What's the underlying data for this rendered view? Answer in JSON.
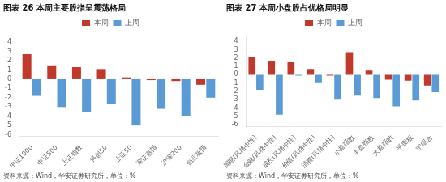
{
  "chart_data": [
    {
      "type": "bar",
      "title": "图表 26 本周主要股指呈震荡格局",
      "categories": [
        "中证1000",
        "中证500",
        "上证指数",
        "科创50",
        "上证50",
        "深证基指",
        "沪深200",
        "创业板指"
      ],
      "series": [
        {
          "name": "本周",
          "color": "#C0392B",
          "values": [
            2.7,
            1.5,
            1.3,
            1.1,
            0.2,
            -0.1,
            -0.2,
            -0.6
          ]
        },
        {
          "name": "上周",
          "color": "#5B9BD5",
          "values": [
            -1.8,
            -3.0,
            -3.5,
            -2.7,
            -5.0,
            -3.2,
            -4.0,
            -2.0
          ]
        }
      ],
      "ylim": [
        -6.2,
        4.8
      ],
      "yticks": [
        -6,
        -5,
        -4,
        -3,
        -2,
        -1,
        0,
        1,
        2,
        3,
        4
      ],
      "grid": false,
      "legend": "top",
      "annotations": [
        "资料来源：Wind，华安证券研究所，单位：%"
      ]
    },
    {
      "type": "bar",
      "title": "图表 27 本周小盘股占优格局明显",
      "categories": [
        "周期(风格中性)",
        "金融(风格中性)",
        "成长(风格中性)",
        "价值(风格中性)",
        "消费(风格中性)",
        "小盘指数",
        "中盘指数",
        "大盘指数",
        "平衡板",
        "宁组合"
      ],
      "series": [
        {
          "name": "本周",
          "color": "#C0392B",
          "values": [
            2.1,
            1.7,
            1.5,
            0.7,
            -0.1,
            2.7,
            0.5,
            -0.6,
            -0.7,
            -1.3
          ]
        },
        {
          "name": "上周",
          "color": "#5B9BD5",
          "values": [
            -1.8,
            -4.8,
            -0.1,
            -0.9,
            -3.0,
            -2.5,
            -2.8,
            -3.8,
            -3.1,
            -2.1
          ]
        }
      ],
      "ylim": [
        -6.2,
        4.8
      ],
      "yticks": [
        -6,
        -5,
        -4,
        -3,
        -2,
        -1,
        0,
        1,
        2,
        3,
        4
      ],
      "grid": false,
      "legend": "top",
      "annotations": [
        "资料来源：Wind，华安证券研究所，单位：%"
      ]
    }
  ]
}
